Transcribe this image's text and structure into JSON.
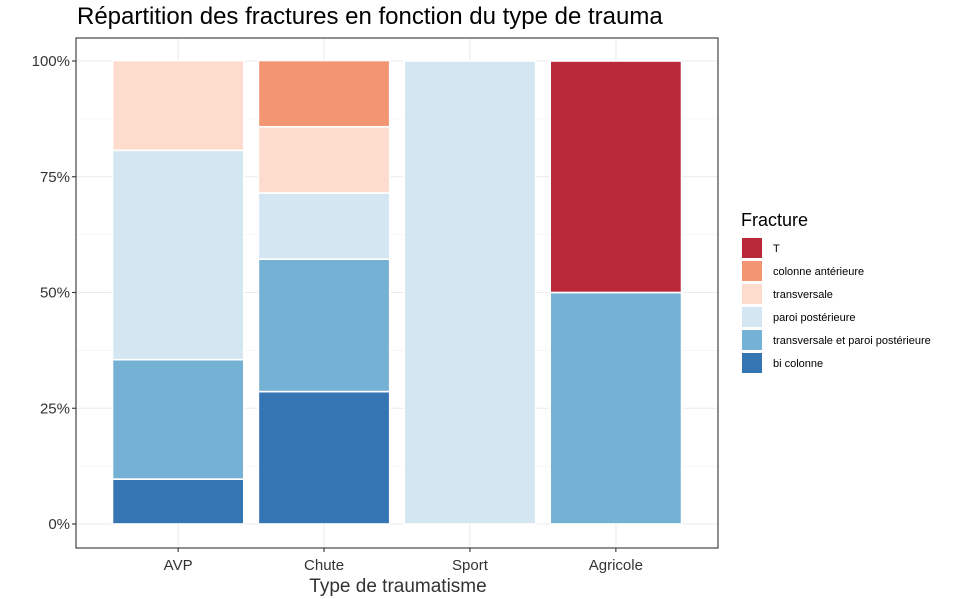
{
  "chart_data": {
    "type": "bar",
    "stacked": true,
    "percent": true,
    "title": "Répartition des fractures en fonction du type de trauma",
    "xlabel": "Type de traumatisme",
    "ylabel": "",
    "ylim": [
      0,
      1
    ],
    "y_ticks": [
      {
        "value": 0,
        "label": "0%"
      },
      {
        "value": 0.25,
        "label": "25%"
      },
      {
        "value": 0.5,
        "label": "50%"
      },
      {
        "value": 0.75,
        "label": "75%"
      },
      {
        "value": 1,
        "label": "100%"
      }
    ],
    "categories": [
      "AVP",
      "Chute",
      "Sport",
      "Agricole"
    ],
    "grid": true,
    "legend": {
      "title": "Fracture",
      "position": "right"
    },
    "series": [
      {
        "name": "T",
        "color": "#b8293a",
        "values": [
          0,
          0,
          0,
          0.5
        ]
      },
      {
        "name": "colonne antérieure",
        "color": "#f19572",
        "values": [
          0,
          0.143,
          0,
          0
        ]
      },
      {
        "name": "transversale",
        "color": "#fddccd",
        "values": [
          0.194,
          0.143,
          0,
          0
        ]
      },
      {
        "name": "paroi postérieure",
        "color": "#d3e6f1",
        "values": [
          0.452,
          0.143,
          1,
          0
        ]
      },
      {
        "name": "transversale et paroi postérieure",
        "color": "#75b1d4",
        "values": [
          0.258,
          0.286,
          0,
          0.5
        ]
      },
      {
        "name": "bi colonne",
        "color": "#3575b4",
        "values": [
          0.097,
          0.286,
          0,
          0
        ]
      }
    ]
  }
}
